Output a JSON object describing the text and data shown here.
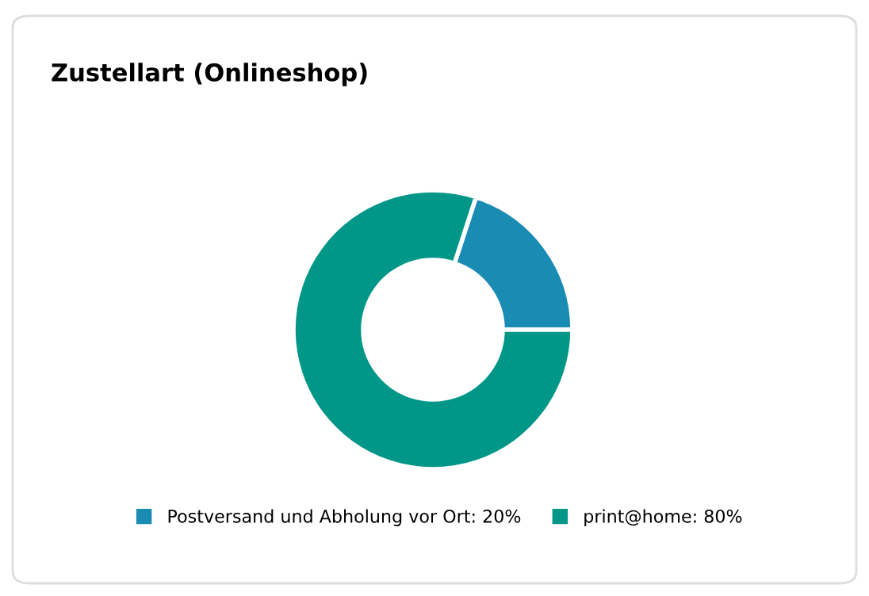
{
  "chart_data": {
    "type": "donut",
    "title": "Zustellart (Onlineshop)",
    "categories": [
      "Postversand und Abholung vor Ort",
      "print@home"
    ],
    "values": [
      20,
      80
    ],
    "value_labels": [
      "20%",
      "80%"
    ],
    "colors": [
      "#1a8bb3",
      "#009688"
    ],
    "legend": "bottom"
  }
}
